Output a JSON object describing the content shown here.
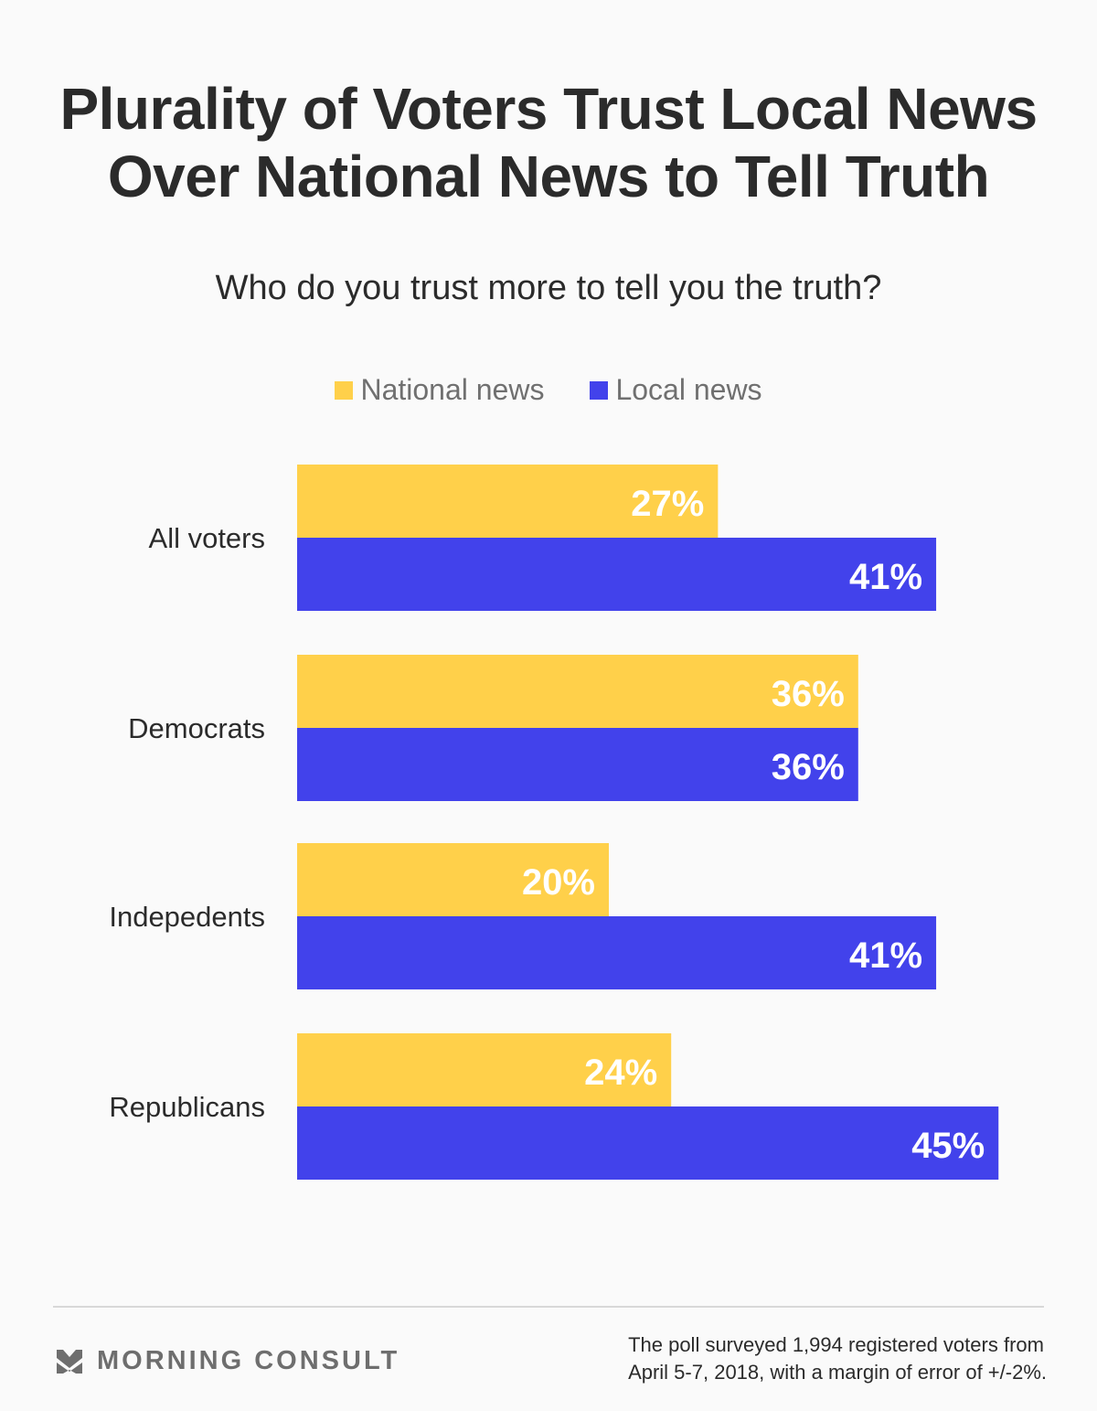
{
  "title_lines": [
    "Plurality of Voters Trust Local News",
    "Over National News to Tell Truth"
  ],
  "subtitle": "Who do you trust more to tell you the truth?",
  "legend": [
    {
      "label": "National news",
      "color": "#ffd04a"
    },
    {
      "label": "Local news",
      "color": "#4242eb"
    }
  ],
  "chart_data": {
    "type": "bar",
    "orientation": "horizontal",
    "title": "Plurality of Voters Trust Local News Over National News to Tell Truth",
    "subtitle": "Who do you trust more to tell you the truth?",
    "categories": [
      "All voters",
      "Democrats",
      "Indepedents",
      "Republicans"
    ],
    "series": [
      {
        "name": "National news",
        "color": "#ffd04a",
        "values": [
          27,
          36,
          20,
          24
        ],
        "labels": [
          "27%",
          "36%",
          "20%",
          "24%"
        ]
      },
      {
        "name": "Local news",
        "color": "#4242eb",
        "values": [
          41,
          36,
          41,
          45
        ],
        "labels": [
          "41%",
          "36%",
          "41%",
          "45%"
        ]
      }
    ],
    "unit": "%",
    "xlim": [
      0,
      45
    ],
    "grid": false,
    "legend_position": "top"
  },
  "footer": {
    "brand": "MORNING CONSULT",
    "brand_icon": "morning-consult-chevron-logo",
    "note_lines": [
      "The poll surveyed 1,994 registered voters from",
      "April 5-7, 2018, with a margin of error of +/-2%."
    ]
  }
}
